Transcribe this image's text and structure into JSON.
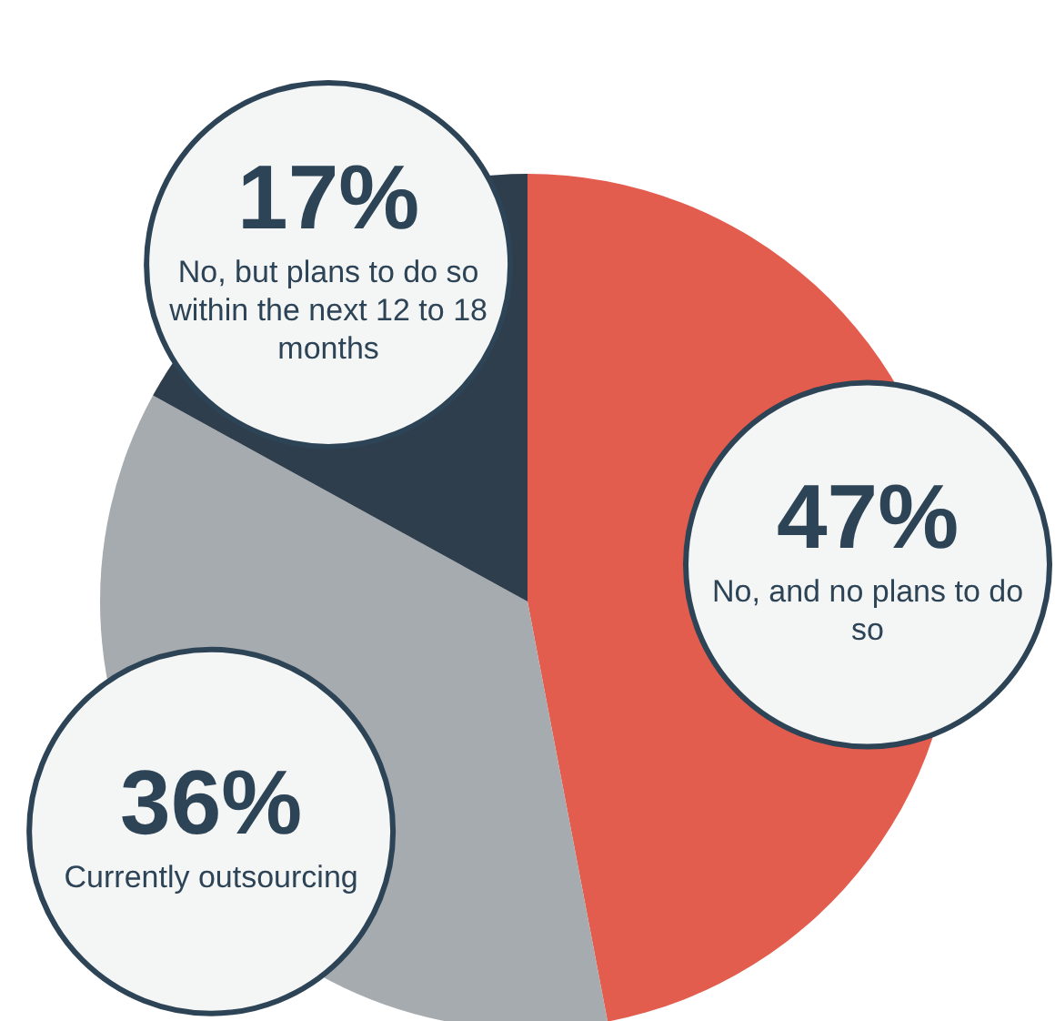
{
  "chart_data": {
    "type": "pie",
    "categories": [
      "No, and no plans to do so",
      "Currently outsourcing",
      "No, but plans to do so within the next 12 to 18 months"
    ],
    "values": [
      47,
      36,
      17
    ],
    "value_labels": [
      "47%",
      "36%",
      "17%"
    ],
    "colors": [
      "#e35d4f",
      "#a6abaf",
      "#2f3e4d"
    ]
  }
}
